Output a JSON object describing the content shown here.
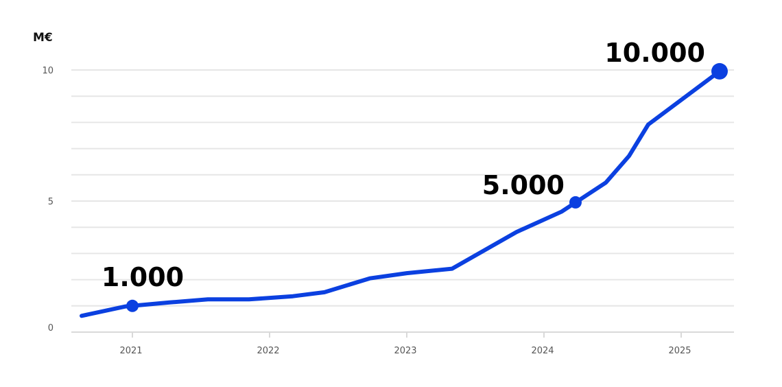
{
  "chart_data": {
    "type": "line",
    "unit_label": "M€",
    "x_ticks": [
      "2021",
      "2022",
      "2023",
      "2024",
      "2025"
    ],
    "y_ticks": [
      "0",
      "5",
      "10"
    ],
    "ylim": [
      0,
      10
    ],
    "xlim": [
      2020.6,
      2025.4
    ],
    "grid": true,
    "legend": "none",
    "series": [
      {
        "color": "#0b40e0",
        "points": [
          {
            "x": 2020.63,
            "y": 0.62
          },
          {
            "x": 2020.95,
            "y": 0.98
          },
          {
            "x": 2021.27,
            "y": 1.13
          },
          {
            "x": 2021.55,
            "y": 1.25
          },
          {
            "x": 2021.85,
            "y": 1.25
          },
          {
            "x": 2022.17,
            "y": 1.37
          },
          {
            "x": 2022.4,
            "y": 1.52
          },
          {
            "x": 2022.73,
            "y": 2.05
          },
          {
            "x": 2023.0,
            "y": 2.25
          },
          {
            "x": 2023.33,
            "y": 2.42
          },
          {
            "x": 2023.8,
            "y": 3.82
          },
          {
            "x": 2024.13,
            "y": 4.6
          },
          {
            "x": 2024.45,
            "y": 5.7
          },
          {
            "x": 2024.62,
            "y": 6.72
          },
          {
            "x": 2024.76,
            "y": 7.92
          },
          {
            "x": 2025.28,
            "y": 9.95
          }
        ]
      }
    ],
    "callouts": [
      {
        "label": "1.000",
        "x": 2021.0,
        "y": 1.0
      },
      {
        "label": "5.000",
        "x": 2024.23,
        "y": 4.95
      },
      {
        "label": "10.000",
        "x": 2025.28,
        "y": 9.95
      }
    ],
    "colors": {
      "line": "#0b40e0",
      "grid": "#e6e6e6",
      "axis": "#d9d9d9",
      "tick_text": "#555555",
      "callout_text": "#000000"
    }
  }
}
